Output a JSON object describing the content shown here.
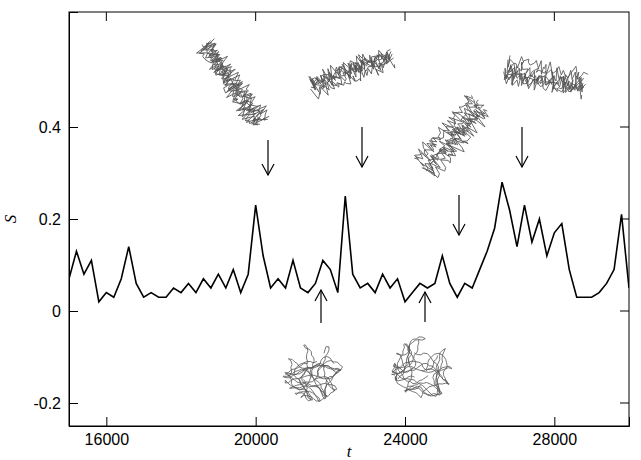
{
  "chart_data": {
    "type": "line",
    "x_label": "t",
    "y_label": "S",
    "color": "#000000",
    "x": [
      15000,
      15200,
      15400,
      15600,
      15800,
      16000,
      16200,
      16400,
      16600,
      16800,
      17000,
      17200,
      17400,
      17600,
      17800,
      18000,
      18200,
      18400,
      18600,
      18800,
      19000,
      19200,
      19400,
      19600,
      19800,
      20000,
      20200,
      20400,
      20600,
      20800,
      21000,
      21200,
      21400,
      21600,
      21800,
      22000,
      22200,
      22400,
      22600,
      22800,
      23000,
      23200,
      23400,
      23600,
      23800,
      24000,
      24200,
      24400,
      24600,
      24800,
      25000,
      25200,
      25400,
      25600,
      25800,
      26000,
      26200,
      26400,
      26600,
      26800,
      27000,
      27200,
      27400,
      27600,
      27800,
      28000,
      28200,
      28400,
      28600,
      28800,
      29000,
      29200,
      29400,
      29600,
      29800,
      30000
    ],
    "values": [
      0.07,
      0.13,
      0.08,
      0.11,
      0.02,
      0.04,
      0.03,
      0.07,
      0.14,
      0.06,
      0.03,
      0.04,
      0.03,
      0.03,
      0.05,
      0.04,
      0.06,
      0.04,
      0.07,
      0.05,
      0.08,
      0.05,
      0.09,
      0.04,
      0.08,
      0.23,
      0.12,
      0.05,
      0.07,
      0.05,
      0.11,
      0.05,
      0.04,
      0.06,
      0.11,
      0.09,
      0.04,
      0.25,
      0.08,
      0.05,
      0.06,
      0.04,
      0.08,
      0.05,
      0.07,
      0.02,
      0.04,
      0.06,
      0.05,
      0.06,
      0.12,
      0.06,
      0.03,
      0.06,
      0.05,
      0.09,
      0.13,
      0.18,
      0.28,
      0.22,
      0.14,
      0.23,
      0.15,
      0.2,
      0.12,
      0.17,
      0.19,
      0.09,
      0.03,
      0.03,
      0.03,
      0.04,
      0.06,
      0.09,
      0.21,
      0.05
    ],
    "xlim": [
      15000,
      30000
    ],
    "xticks": [
      16000,
      20000,
      24000,
      28000
    ],
    "ylim": [
      -0.25,
      0.65
    ],
    "yticks": [
      -0.2,
      0,
      0.2,
      0.4
    ]
  }
}
